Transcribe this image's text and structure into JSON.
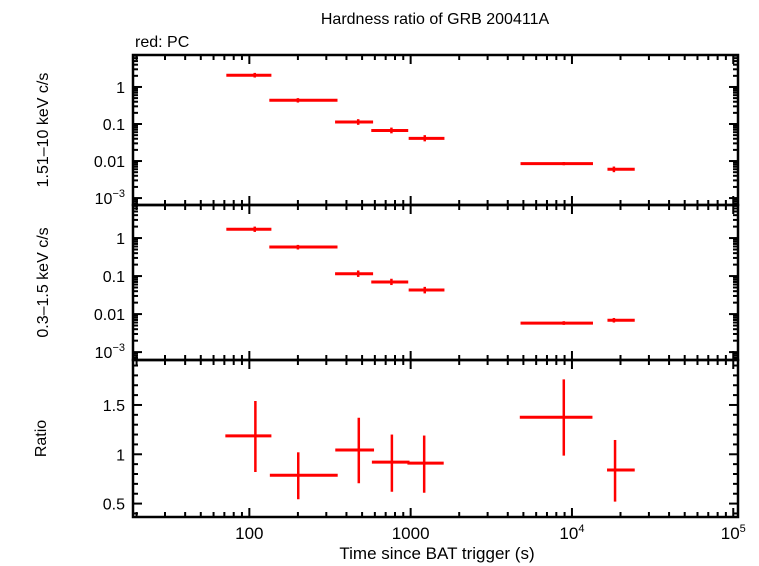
{
  "chart_data": {
    "type": "scatter",
    "title": "Hardness ratio of GRB 200411A",
    "legend_note": "red: PC",
    "xlabel": "Time since BAT trigger (s)",
    "xscale": "log",
    "xlim": [
      19,
      107000
    ],
    "x_tick_labels": [
      "100",
      "1000",
      "10^4",
      "10^5"
    ],
    "color": "#ff0000",
    "panels": [
      {
        "ylabel": "1.51–10 keV c/s",
        "yscale": "log",
        "ylim": [
          0.00065,
          7.3
        ],
        "y_tick_labels": [
          "1",
          "0.1",
          "0.01",
          "10^-3"
        ],
        "points": [
          {
            "x": 108,
            "xlo": 72,
            "xhi": 137,
            "y": 2.07,
            "ylo": 1.8,
            "yhi": 2.4
          },
          {
            "x": 200,
            "xlo": 133,
            "xhi": 352,
            "y": 0.437,
            "ylo": 0.38,
            "yhi": 0.5
          },
          {
            "x": 473,
            "xlo": 340,
            "xhi": 585,
            "y": 0.113,
            "ylo": 0.095,
            "yhi": 0.135
          },
          {
            "x": 760,
            "xlo": 570,
            "xhi": 966,
            "y": 0.067,
            "ylo": 0.056,
            "yhi": 0.08
          },
          {
            "x": 1223,
            "xlo": 972,
            "xhi": 1620,
            "y": 0.041,
            "ylo": 0.034,
            "yhi": 0.05
          },
          {
            "x": 8900,
            "xlo": 4800,
            "xhi": 13500,
            "y": 0.0085,
            "ylo": 0.0077,
            "yhi": 0.0094
          },
          {
            "x": 18200,
            "xlo": 16600,
            "xhi": 24500,
            "y": 0.006,
            "ylo": 0.005,
            "yhi": 0.0071
          }
        ]
      },
      {
        "ylabel": "0.3–1.5 keV c/s",
        "yscale": "log",
        "ylim": [
          0.00062,
          7.4
        ],
        "y_tick_labels": [
          "1",
          "0.1",
          "0.01",
          "10^-3"
        ],
        "points": [
          {
            "x": 108,
            "xlo": 72,
            "xhi": 137,
            "y": 1.7,
            "ylo": 1.45,
            "yhi": 2.0
          },
          {
            "x": 200,
            "xlo": 133,
            "xhi": 352,
            "y": 0.58,
            "ylo": 0.5,
            "yhi": 0.66
          },
          {
            "x": 473,
            "xlo": 340,
            "xhi": 585,
            "y": 0.115,
            "ylo": 0.095,
            "yhi": 0.14
          },
          {
            "x": 760,
            "xlo": 570,
            "xhi": 966,
            "y": 0.07,
            "ylo": 0.058,
            "yhi": 0.085
          },
          {
            "x": 1223,
            "xlo": 972,
            "xhi": 1620,
            "y": 0.043,
            "ylo": 0.035,
            "yhi": 0.052
          },
          {
            "x": 8900,
            "xlo": 4800,
            "xhi": 13500,
            "y": 0.0058,
            "ylo": 0.0052,
            "yhi": 0.0065
          },
          {
            "x": 18200,
            "xlo": 16600,
            "xhi": 24500,
            "y": 0.0069,
            "ylo": 0.006,
            "yhi": 0.0079
          }
        ]
      },
      {
        "ylabel": "Ratio",
        "yscale": "linear",
        "ylim": [
          0.364,
          1.956
        ],
        "y_tick_labels": [
          "1.5",
          "1",
          "0.5"
        ],
        "points": [
          {
            "x": 109,
            "xlo": 71,
            "xhi": 137,
            "y": 1.186,
            "ylo": 0.82,
            "yhi": 1.54
          },
          {
            "x": 201,
            "xlo": 134,
            "xhi": 353,
            "y": 0.787,
            "ylo": 0.544,
            "yhi": 1.02
          },
          {
            "x": 477,
            "xlo": 341,
            "xhi": 593,
            "y": 1.044,
            "ylo": 0.706,
            "yhi": 1.37
          },
          {
            "x": 765,
            "xlo": 575,
            "xhi": 984,
            "y": 0.92,
            "ylo": 0.62,
            "yhi": 1.2
          },
          {
            "x": 1213,
            "xlo": 955,
            "xhi": 1603,
            "y": 0.91,
            "ylo": 0.61,
            "yhi": 1.19
          },
          {
            "x": 8900,
            "xlo": 4750,
            "xhi": 13400,
            "y": 1.375,
            "ylo": 0.986,
            "yhi": 1.76
          },
          {
            "x": 18500,
            "xlo": 16500,
            "xhi": 24500,
            "y": 0.84,
            "ylo": 0.52,
            "yhi": 1.145
          }
        ]
      }
    ]
  }
}
